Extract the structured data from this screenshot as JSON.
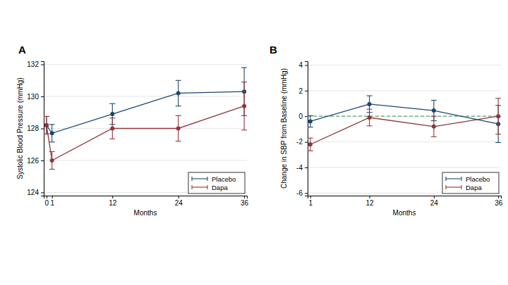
{
  "chart_data": [
    {
      "type": "line",
      "title": "A",
      "x_label": "Months",
      "y_label": "Systolic Blood Pressure (mmHg)",
      "x": [
        0,
        1,
        12,
        24,
        36
      ],
      "xlim": [
        -0.5,
        36.5
      ],
      "xticks": [
        0,
        1,
        12,
        24,
        36
      ],
      "ylim": [
        123.8,
        132.2
      ],
      "yticks": [
        124,
        126,
        128,
        130,
        132
      ],
      "grid": true,
      "legend": "lower right",
      "marker": "circle",
      "series": [
        {
          "name": "Placebo",
          "color": "#1a476f",
          "values": [
            128.2,
            127.7,
            128.9,
            130.2,
            130.3
          ],
          "errors": [
            0.55,
            0.55,
            0.65,
            0.8,
            1.5
          ]
        },
        {
          "name": "Dapa",
          "color": "#90353b",
          "values": [
            128.2,
            126.0,
            128.0,
            128.0,
            129.4
          ],
          "errors": [
            0.55,
            0.55,
            0.65,
            0.8,
            1.5
          ]
        }
      ]
    },
    {
      "type": "line",
      "title": "B",
      "x_label": "Months",
      "y_label": "Change in SBP from Baseline (mmHg)",
      "x": [
        1,
        12,
        24,
        36
      ],
      "xlim": [
        0.5,
        36.5
      ],
      "xticks": [
        1,
        12,
        24,
        36
      ],
      "ylim": [
        -6.2,
        4.3
      ],
      "yticks": [
        -6,
        -4,
        -2,
        0,
        2,
        4
      ],
      "grid": true,
      "legend": "lower right",
      "marker": "circle",
      "hline": 0,
      "series": [
        {
          "name": "Placebo",
          "color": "#1a476f",
          "values": [
            -0.4,
            0.95,
            0.45,
            -0.6
          ],
          "errors": [
            0.45,
            0.65,
            0.8,
            1.45
          ]
        },
        {
          "name": "Dapa",
          "color": "#90353b",
          "values": [
            -2.2,
            -0.1,
            -0.8,
            0.0
          ],
          "errors": [
            0.5,
            0.65,
            0.8,
            1.4
          ]
        }
      ]
    }
  ]
}
